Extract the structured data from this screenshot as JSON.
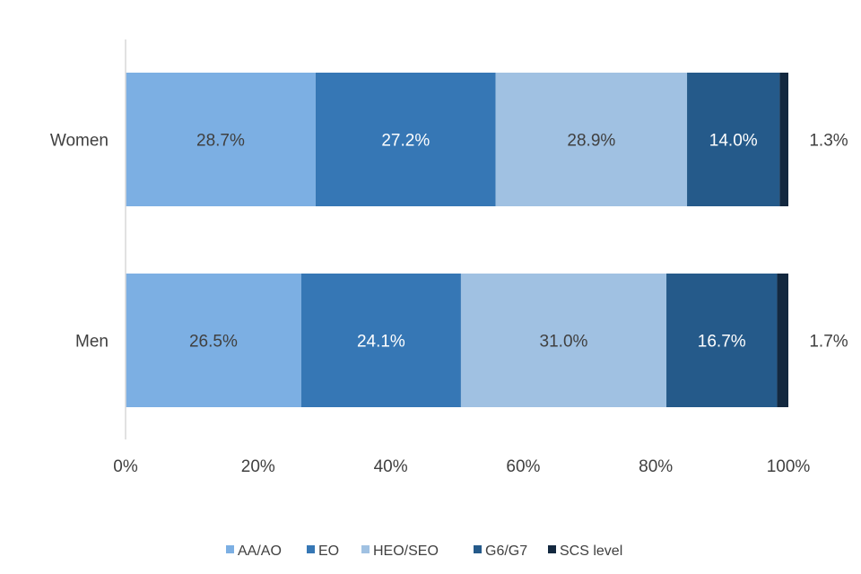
{
  "chart_data": {
    "type": "bar",
    "orientation": "horizontal",
    "stacked": true,
    "categories": [
      "Women",
      "Men"
    ],
    "series": [
      {
        "name": "AA/AO",
        "values": [
          28.7,
          26.5
        ],
        "color": "#7cafe3",
        "label_color": "#404040"
      },
      {
        "name": "EO",
        "values": [
          27.2,
          24.1
        ],
        "color": "#3677b5",
        "label_color": "#ffffff"
      },
      {
        "name": "HEO/SEO",
        "values": [
          28.9,
          31.0
        ],
        "color": "#a0c1e2",
        "label_color": "#404040"
      },
      {
        "name": "G6/G7",
        "values": [
          14.0,
          16.7
        ],
        "color": "#255a8a",
        "label_color": "#ffffff"
      },
      {
        "name": "SCS level",
        "values": [
          1.3,
          1.7
        ],
        "color": "#13283f",
        "label_color": "#404040"
      }
    ],
    "value_labels": [
      [
        "28.7%",
        "27.2%",
        "28.9%",
        "14.0%",
        "1.3%"
      ],
      [
        "26.5%",
        "24.1%",
        "31.0%",
        "16.7%",
        "1.7%"
      ]
    ],
    "x_ticks": [
      "0%",
      "20%",
      "40%",
      "60%",
      "80%",
      "100%"
    ],
    "xlim": [
      0,
      100
    ],
    "title": "",
    "xlabel": "",
    "ylabel": "",
    "grid": false,
    "legend_position": "bottom"
  }
}
